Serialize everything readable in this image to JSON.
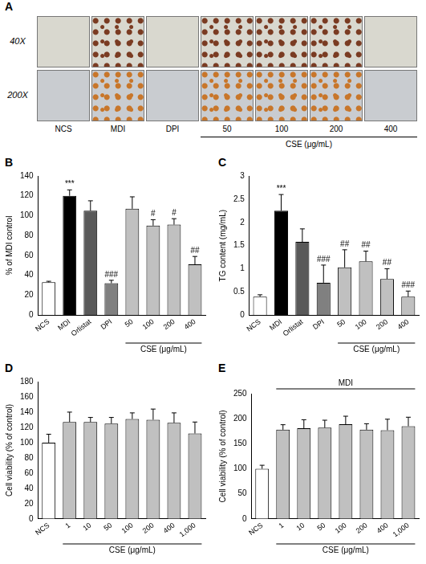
{
  "panel_a": {
    "panel": "A",
    "rows": [
      "40X",
      "200X"
    ],
    "columns": [
      "NCS",
      "MDI",
      "DPI",
      "50",
      "100",
      "200",
      "400"
    ],
    "group": {
      "label": "CSE (μg/mL)",
      "columns": [
        "50",
        "100",
        "200",
        "400"
      ]
    }
  },
  "chart_data": [
    {
      "panel": "B",
      "type": "bar",
      "y_label": "% of MDI control",
      "categories": [
        "NCS",
        "MDI",
        "Orlistat",
        "DPI",
        "50",
        "100",
        "200",
        "400"
      ],
      "values": [
        33,
        120,
        105,
        32,
        107,
        90,
        91,
        51
      ],
      "errors": [
        1,
        6,
        10,
        3,
        12,
        6,
        6,
        8
      ],
      "significance": [
        null,
        "***",
        null,
        "###",
        null,
        "#",
        "#",
        "##"
      ],
      "colors": [
        "#ffffff",
        "#000000",
        "#595959",
        "#808080",
        "#c0c0c0",
        "#c0c0c0",
        "#c0c0c0",
        "#c0c0c0"
      ],
      "ylim": [
        0,
        140
      ],
      "yticks": [
        0,
        20,
        40,
        60,
        80,
        100,
        120,
        140
      ],
      "grid": false,
      "bracket_groups": [
        {
          "label": "CSE (μg/mL)",
          "categories": [
            "50",
            "100",
            "200",
            "400"
          ]
        }
      ]
    },
    {
      "panel": "C",
      "type": "bar",
      "y_label": "TG content (mg/mL)",
      "categories": [
        "NCS",
        "MDI",
        "Orlistat",
        "DPI",
        "50",
        "100",
        "200",
        "400"
      ],
      "values": [
        0.4,
        2.25,
        1.58,
        0.7,
        1.03,
        1.16,
        0.78,
        0.4
      ],
      "errors": [
        0.04,
        0.35,
        0.28,
        0.38,
        0.38,
        0.22,
        0.22,
        0.12
      ],
      "significance": [
        null,
        "***",
        null,
        "###",
        "##",
        "##",
        "##",
        "###"
      ],
      "colors": [
        "#ffffff",
        "#000000",
        "#595959",
        "#808080",
        "#c0c0c0",
        "#c0c0c0",
        "#c0c0c0",
        "#c0c0c0"
      ],
      "ylim": [
        0,
        3
      ],
      "yticks": [
        0,
        0.5,
        1,
        1.5,
        2,
        2.5,
        3
      ],
      "grid": false,
      "bracket_groups": [
        {
          "label": "CSE (μg/mL)",
          "categories": [
            "50",
            "100",
            "200",
            "400"
          ]
        }
      ]
    },
    {
      "panel": "D",
      "type": "bar",
      "y_label": "Cell viability (% of control)",
      "categories": [
        "NCS",
        "1",
        "10",
        "50",
        "100",
        "200",
        "400",
        "1,000"
      ],
      "values": [
        100,
        127,
        127,
        125,
        131,
        130,
        126,
        112
      ],
      "errors": [
        11,
        13,
        6,
        8,
        8,
        14,
        13,
        15
      ],
      "colors": [
        "#ffffff",
        "#c0c0c0",
        "#c0c0c0",
        "#c0c0c0",
        "#c0c0c0",
        "#c0c0c0",
        "#c0c0c0",
        "#c0c0c0"
      ],
      "ylim": [
        0,
        180
      ],
      "yticks": [
        0,
        20,
        40,
        60,
        80,
        100,
        120,
        140,
        160,
        180
      ],
      "grid": false,
      "bracket_groups": [
        {
          "label": "CSE (μg/mL)",
          "categories": [
            "1",
            "10",
            "50",
            "100",
            "200",
            "400",
            "1,000"
          ]
        }
      ]
    },
    {
      "panel": "E",
      "type": "bar",
      "y_label": "Cell viability (% of control)",
      "categories": [
        "NCS",
        "1",
        "10",
        "50",
        "100",
        "200",
        "400",
        "1,000"
      ],
      "values": [
        100,
        178,
        181,
        182,
        189,
        178,
        177,
        185
      ],
      "errors": [
        7,
        10,
        17,
        15,
        16,
        12,
        22,
        18
      ],
      "colors": [
        "#ffffff",
        "#c0c0c0",
        "#c0c0c0",
        "#c0c0c0",
        "#c0c0c0",
        "#c0c0c0",
        "#c0c0c0",
        "#c0c0c0"
      ],
      "ylim": [
        0,
        250
      ],
      "yticks": [
        0,
        50,
        100,
        150,
        200,
        250
      ],
      "grid": false,
      "bracket_groups": [
        {
          "label": "CSE (μg/mL)",
          "categories": [
            "1",
            "10",
            "50",
            "100",
            "200",
            "400",
            "1,000"
          ]
        }
      ],
      "header_groups": [
        {
          "label": "MDI",
          "categories": [
            "1",
            "10",
            "50",
            "100",
            "200",
            "400",
            "1,000"
          ]
        }
      ]
    }
  ]
}
